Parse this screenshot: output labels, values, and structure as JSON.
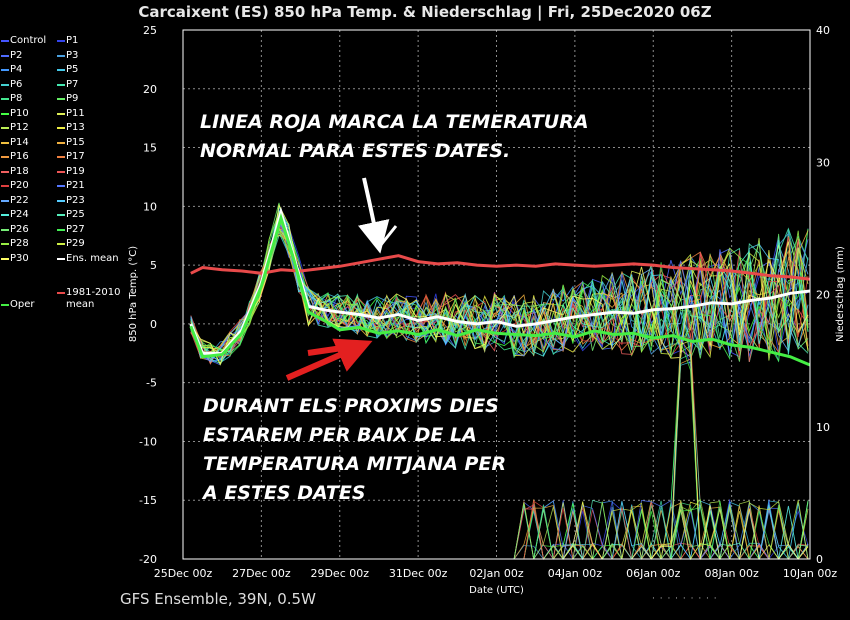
{
  "chart_data": {
    "type": "line",
    "title": "Carcaixent  (ES)  850 hPa Temp. & Niederschlag | Fri, 25Dec2020 06Z",
    "xlabel": "Date (UTC)",
    "ylabel": "850 hPa Temp. (°C)",
    "y2label": "Niederschlag (mm)",
    "x_ticks": [
      "25Dec 00z",
      "27Dec 00z",
      "29Dec 00z",
      "31Dec 00z",
      "02Jan 00z",
      "04Jan 00z",
      "06Jan 00z",
      "08Jan 00z",
      "10Jan 00z"
    ],
    "x_range_days": [
      0,
      16
    ],
    "ylim": [
      -20,
      25
    ],
    "y_ticks": [
      25,
      20,
      15,
      10,
      5,
      0,
      -5,
      -10,
      -15,
      -20
    ],
    "y2lim": [
      0,
      40
    ],
    "y2_ticks": [
      40,
      30,
      20,
      10,
      0
    ],
    "grid": true,
    "legend_position": "left",
    "series": [
      {
        "name": "1981-2010 mean",
        "color": "#e84a4a",
        "x": [
          0.2,
          0.5,
          1,
          1.5,
          2,
          2.5,
          3,
          3.5,
          4,
          4.5,
          5,
          5.5,
          6,
          6.5,
          7,
          7.5,
          8,
          8.5,
          9,
          9.5,
          10,
          10.5,
          11,
          11.5,
          12,
          12.5,
          13,
          13.5,
          14,
          14.5,
          15,
          15.5,
          16
        ],
        "values": [
          4.3,
          4.8,
          4.6,
          4.5,
          4.3,
          4.6,
          4.5,
          4.7,
          4.9,
          5.2,
          5.5,
          5.8,
          5.3,
          5.1,
          5.2,
          5.0,
          4.9,
          5.0,
          4.9,
          5.1,
          5.0,
          4.9,
          5.0,
          5.1,
          5.0,
          4.8,
          4.7,
          4.6,
          4.5,
          4.3,
          4.1,
          4.0,
          3.8
        ]
      },
      {
        "name": "Ens. mean",
        "color": "#ffffff",
        "x": [
          0.2,
          0.5,
          1,
          1.5,
          2,
          2.5,
          2.8,
          3.2,
          3.6,
          4,
          4.5,
          5,
          5.5,
          6,
          6.5,
          7,
          7.5,
          8,
          8.5,
          9,
          9.5,
          10,
          10.5,
          11,
          11.5,
          12,
          12.5,
          13,
          13.5,
          14,
          14.5,
          15,
          15.5,
          16
        ],
        "values": [
          0,
          -2.5,
          -2.5,
          -0.5,
          3.5,
          9.5,
          6,
          1.5,
          1.2,
          1.0,
          0.8,
          0.5,
          0.8,
          0.3,
          0.6,
          0.2,
          0,
          0.2,
          -0.2,
          0,
          0.3,
          0.6,
          0.8,
          1.0,
          0.9,
          1.2,
          1.3,
          1.5,
          1.8,
          1.7,
          2.0,
          2.2,
          2.6,
          2.8
        ]
      },
      {
        "name": "Oper",
        "color": "#44ee44",
        "x": [
          0.2,
          0.5,
          1,
          1.5,
          2,
          2.5,
          2.8,
          3.2,
          3.6,
          4,
          4.5,
          5,
          5.5,
          6,
          6.5,
          7,
          7.5,
          8,
          8.5,
          9,
          9.5,
          10,
          10.5,
          11,
          11.5,
          12,
          12.5,
          13,
          13.5,
          14,
          14.5,
          15,
          15.5,
          16
        ],
        "values": [
          -0.2,
          -2.8,
          -2.6,
          -0.8,
          3.2,
          9.0,
          5.8,
          1.0,
          0.3,
          -0.5,
          -0.3,
          -0.8,
          -0.6,
          -0.9,
          -0.5,
          -1.0,
          -0.5,
          -0.8,
          -0.9,
          -1.0,
          -0.8,
          -1.1,
          -0.6,
          -0.9,
          -0.8,
          -1.2,
          -1.0,
          -1.5,
          -1.3,
          -1.8,
          -2.0,
          -2.4,
          -2.8,
          -3.5
        ]
      }
    ],
    "legend_entries": [
      {
        "label": "Control",
        "color": "#4455ff"
      },
      {
        "label": "P1",
        "color": "#3344ee"
      },
      {
        "label": "P2",
        "color": "#4f6bff"
      },
      {
        "label": "P3",
        "color": "#4aa0e0"
      },
      {
        "label": "P4",
        "color": "#4499ff"
      },
      {
        "label": "P5",
        "color": "#44c8e8"
      },
      {
        "label": "P6",
        "color": "#44d0d0"
      },
      {
        "label": "P7",
        "color": "#44e8b0"
      },
      {
        "label": "P8",
        "color": "#44e890"
      },
      {
        "label": "P9",
        "color": "#66ee66"
      },
      {
        "label": "P10",
        "color": "#44ff44"
      },
      {
        "label": "P11",
        "color": "#ddee55"
      },
      {
        "label": "P12",
        "color": "#bbee55"
      },
      {
        "label": "P13",
        "color": "#eeee44"
      },
      {
        "label": "P14",
        "color": "#f0c040"
      },
      {
        "label": "P15",
        "color": "#f0b040"
      },
      {
        "label": "P16",
        "color": "#f09a40"
      },
      {
        "label": "P17",
        "color": "#f08040"
      },
      {
        "label": "P18",
        "color": "#f06060"
      },
      {
        "label": "P19",
        "color": "#ee5555"
      },
      {
        "label": "P20",
        "color": "#e04040"
      },
      {
        "label": "P21",
        "color": "#5577ff"
      },
      {
        "label": "P22",
        "color": "#66aaff"
      },
      {
        "label": "P23",
        "color": "#55ccff"
      },
      {
        "label": "P24",
        "color": "#55eedd"
      },
      {
        "label": "P25",
        "color": "#55eebb"
      },
      {
        "label": "P26",
        "color": "#77ee77"
      },
      {
        "label": "P27",
        "color": "#44ee55"
      },
      {
        "label": "P28",
        "color": "#99ee44"
      },
      {
        "label": "P29",
        "color": "#ccee44"
      },
      {
        "label": "P30",
        "color": "#ffff66"
      },
      {
        "label": "Ens. mean",
        "color": "#ffffff"
      },
      {
        "label": "1981-2010\nmean",
        "color": "#e84a4a"
      },
      {
        "label": "Oper",
        "color": "#44ee44"
      }
    ]
  },
  "annotations": {
    "top_line1": "LINEA ROJA MARCA LA TEMERATURA",
    "top_line2": "NORMAL PARA  ESTES  DATES.",
    "bottom_line1": "DURANT ELS PROXIMS DIES",
    "bottom_line2": "ESTAREM PER BAIX DE LA",
    "bottom_line3": "TEMPERATURA MITJANA PER",
    "bottom_line4": "A ESTES DATES"
  },
  "footer": {
    "left": "GFS Ensemble, 39N, 0.5W",
    "right": "·  ·   ·  · · ·   ·  · ·"
  }
}
